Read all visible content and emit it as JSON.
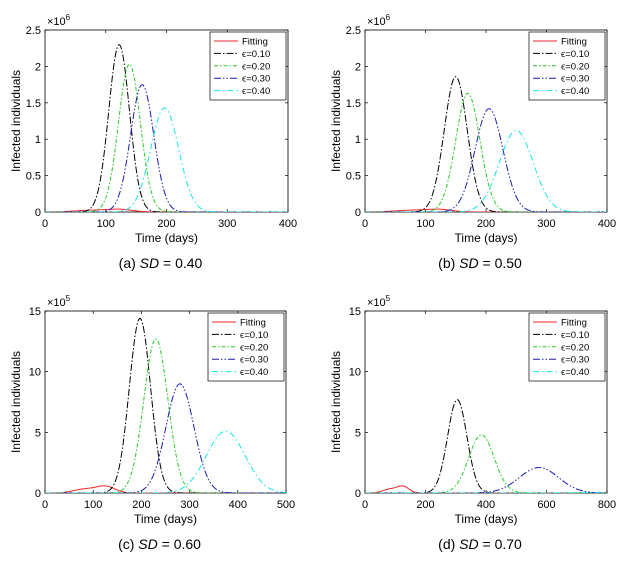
{
  "figure": {
    "legend_labels": [
      "Fitting",
      "ϵ=0.10",
      "ϵ=0.20",
      "ϵ=0.30",
      "ϵ=0.40"
    ],
    "series_colors": [
      "#e8262b",
      "#000000",
      "#22cc22",
      "#1a1ab8",
      "#11e5e5"
    ]
  },
  "chart_data": [
    {
      "type": "line",
      "panel": "a",
      "caption_prefix": "(a)",
      "caption_sd": "SD",
      "caption_value": "= 0.40",
      "xlabel": "Time (days)",
      "ylabel": "Infected individuals",
      "exponent_base": "×10",
      "exponent_power": "6",
      "xlim": [
        0,
        400
      ],
      "ylim": [
        0,
        2.5
      ],
      "xticks": [
        0,
        100,
        200,
        300,
        400
      ],
      "xtick_labels": [
        "0",
        "100",
        "200",
        "300",
        "400"
      ],
      "yticks": [
        0,
        0.5,
        1,
        1.5,
        2,
        2.5
      ],
      "ytick_labels": [
        "0",
        "0.5",
        "1",
        "1.5",
        "2",
        "2.5"
      ],
      "series": [
        {
          "name": "Fitting",
          "peaks": [
            {
              "x": 80,
              "y": 0.025,
              "w": 30
            },
            {
              "x": 125,
              "y": 0.03,
              "w": 20
            }
          ]
        },
        {
          "name": "ϵ=0.10",
          "peaks": [
            {
              "x": 122,
              "y": 2.3,
              "w": 17
            }
          ]
        },
        {
          "name": "ϵ=0.20",
          "peaks": [
            {
              "x": 139,
              "y": 2.03,
              "w": 18
            }
          ]
        },
        {
          "name": "ϵ=0.30",
          "peaks": [
            {
              "x": 160,
              "y": 1.75,
              "w": 19
            }
          ]
        },
        {
          "name": "ϵ=0.40",
          "peaks": [
            {
              "x": 197,
              "y": 1.43,
              "w": 23
            }
          ]
        }
      ]
    },
    {
      "type": "line",
      "panel": "b",
      "caption_prefix": "(b)",
      "caption_sd": "SD",
      "caption_value": "= 0.50",
      "xlabel": "Time (days)",
      "ylabel": "Infected individuals",
      "exponent_base": "×10",
      "exponent_power": "6",
      "xlim": [
        0,
        400
      ],
      "ylim": [
        0,
        2.5
      ],
      "xticks": [
        0,
        100,
        200,
        300,
        400
      ],
      "xtick_labels": [
        "0",
        "100",
        "200",
        "300",
        "400"
      ],
      "yticks": [
        0,
        0.5,
        1,
        1.5,
        2,
        2.5
      ],
      "ytick_labels": [
        "0",
        "0.5",
        "1",
        "1.5",
        "2",
        "2.5"
      ],
      "series": [
        {
          "name": "Fitting",
          "peaks": [
            {
              "x": 80,
              "y": 0.025,
              "w": 30
            },
            {
              "x": 125,
              "y": 0.03,
              "w": 20
            }
          ]
        },
        {
          "name": "ϵ=0.10",
          "peaks": [
            {
              "x": 150,
              "y": 1.86,
              "w": 19
            }
          ]
        },
        {
          "name": "ϵ=0.20",
          "peaks": [
            {
              "x": 170,
              "y": 1.63,
              "w": 20
            }
          ]
        },
        {
          "name": "ϵ=0.30",
          "peaks": [
            {
              "x": 205,
              "y": 1.42,
              "w": 23
            }
          ]
        },
        {
          "name": "ϵ=0.40",
          "peaks": [
            {
              "x": 250,
              "y": 1.12,
              "w": 28
            }
          ]
        }
      ]
    },
    {
      "type": "line",
      "panel": "c",
      "caption_prefix": "(c)",
      "caption_sd": "SD",
      "caption_value": "= 0.60",
      "xlabel": "Time (days)",
      "ylabel": "Infected individuals",
      "exponent_base": "×10",
      "exponent_power": "5",
      "xlim": [
        0,
        500
      ],
      "ylim": [
        0,
        15
      ],
      "xticks": [
        0,
        100,
        200,
        300,
        400,
        500
      ],
      "xtick_labels": [
        "0",
        "100",
        "200",
        "300",
        "400",
        "500"
      ],
      "yticks": [
        0,
        5,
        10,
        15
      ],
      "ytick_labels": [
        "0",
        "5",
        "10",
        "15"
      ],
      "series": [
        {
          "name": "Fitting",
          "peaks": [
            {
              "x": 80,
              "y": 0.3,
              "w": 22
            },
            {
              "x": 125,
              "y": 0.55,
              "w": 20
            }
          ]
        },
        {
          "name": "ϵ=0.10",
          "peaks": [
            {
              "x": 197,
              "y": 14.4,
              "w": 22
            }
          ]
        },
        {
          "name": "ϵ=0.20",
          "peaks": [
            {
              "x": 230,
              "y": 12.7,
              "w": 25
            }
          ]
        },
        {
          "name": "ϵ=0.30",
          "peaks": [
            {
              "x": 280,
              "y": 9.0,
              "w": 29
            }
          ]
        },
        {
          "name": "ϵ=0.40",
          "peaks": [
            {
              "x": 375,
              "y": 5.1,
              "w": 40
            }
          ]
        }
      ]
    },
    {
      "type": "line",
      "panel": "d",
      "caption_prefix": "(d)",
      "caption_sd": "SD",
      "caption_value": "= 0.70",
      "xlabel": "Time (days)",
      "ylabel": "Infected individuals",
      "exponent_base": "×10",
      "exponent_power": "5",
      "xlim": [
        0,
        800
      ],
      "ylim": [
        0,
        15
      ],
      "xticks": [
        0,
        200,
        400,
        600,
        800
      ],
      "xtick_labels": [
        "0",
        "200",
        "400",
        "600",
        "800"
      ],
      "yticks": [
        0,
        5,
        10,
        15
      ],
      "ytick_labels": [
        "0",
        "5",
        "10",
        "15"
      ],
      "series": [
        {
          "name": "Fitting",
          "peaks": [
            {
              "x": 80,
              "y": 0.3,
              "w": 22
            },
            {
              "x": 125,
              "y": 0.55,
              "w": 20
            }
          ]
        },
        {
          "name": "ϵ=0.10",
          "peaks": [
            {
              "x": 305,
              "y": 7.7,
              "w": 32
            }
          ]
        },
        {
          "name": "ϵ=0.20",
          "peaks": [
            {
              "x": 385,
              "y": 4.8,
              "w": 42
            }
          ]
        },
        {
          "name": "ϵ=0.30",
          "peaks": [
            {
              "x": 575,
              "y": 2.1,
              "w": 65
            }
          ]
        },
        {
          "name": "ϵ=0.40",
          "peaks": [
            {
              "x": 800,
              "y": 0.05,
              "w": 80
            }
          ]
        }
      ]
    }
  ]
}
